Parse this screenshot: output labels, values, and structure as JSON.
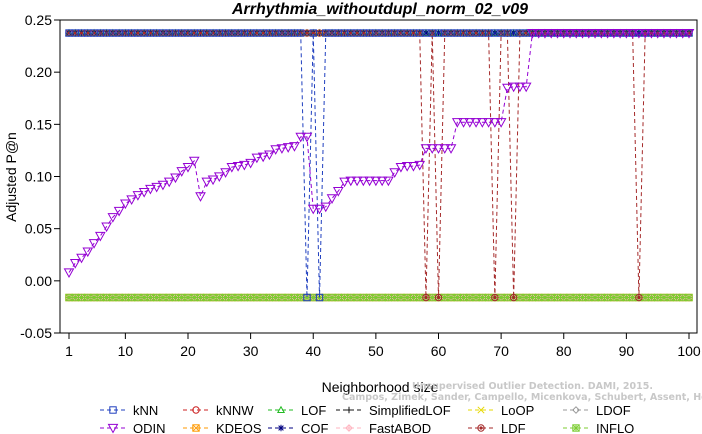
{
  "chart_data": {
    "type": "line",
    "title": "Arrhythmia_withoutdupl_norm_02_v09",
    "xlabel": "Neighborhood size",
    "ylabel": "Adjusted P@n",
    "xlim": [
      1,
      100
    ],
    "ylim": [
      -0.05,
      0.25
    ],
    "xticks": [
      1,
      10,
      20,
      30,
      40,
      50,
      60,
      70,
      80,
      90,
      100
    ],
    "yticks": [
      -0.05,
      0.0,
      0.05,
      0.1,
      0.15,
      0.2,
      0.25
    ],
    "grid": false,
    "legend_position": "bottom",
    "series": [
      {
        "name": "kNN",
        "color": "#1f3fbf",
        "marker": "square",
        "segments": [
          {
            "from": 1,
            "to": 38,
            "value": 0.2375
          },
          {
            "from": 39,
            "to": 39,
            "value": -0.016
          },
          {
            "from": 40,
            "to": 40,
            "value": 0.2375
          },
          {
            "from": 41,
            "to": 41,
            "value": -0.016
          },
          {
            "from": 42,
            "to": 100,
            "value": 0.2375
          }
        ]
      },
      {
        "name": "kNNW",
        "color": "#cc2222",
        "marker": "circle",
        "segments": [
          {
            "from": 1,
            "to": 100,
            "value": -0.016
          }
        ]
      },
      {
        "name": "LOF",
        "color": "#22bb22",
        "marker": "triangle-up",
        "segments": [
          {
            "from": 1,
            "to": 100,
            "value": 0.2375
          }
        ]
      },
      {
        "name": "SimplifiedLOF",
        "color": "#111111",
        "marker": "plus",
        "segments": [
          {
            "from": 1,
            "to": 100,
            "value": -0.016
          }
        ]
      },
      {
        "name": "LoOP",
        "color": "#e6d800",
        "marker": "x",
        "segments": [
          {
            "from": 1,
            "to": 100,
            "value": -0.016
          }
        ]
      },
      {
        "name": "LDOF",
        "color": "#999999",
        "marker": "diamond",
        "segments": [
          {
            "from": 1,
            "to": 100,
            "value": -0.016
          }
        ]
      },
      {
        "name": "ODIN",
        "color": "#9400d3",
        "marker": "triangle-down",
        "x": [
          1,
          2,
          3,
          4,
          5,
          6,
          7,
          8,
          9,
          10,
          11,
          12,
          13,
          14,
          15,
          16,
          17,
          18,
          19,
          20,
          21,
          22,
          23,
          24,
          25,
          26,
          27,
          28,
          29,
          30,
          31,
          32,
          33,
          34,
          35,
          36,
          37,
          38,
          39,
          40,
          41,
          42,
          43,
          44,
          45,
          46,
          47,
          48,
          49,
          50,
          51,
          52,
          53,
          54,
          55,
          56,
          57,
          58,
          59,
          60,
          61,
          62,
          63,
          64,
          65,
          66,
          67,
          68,
          69,
          70,
          71,
          72,
          73,
          74,
          75,
          76,
          77,
          78,
          79,
          80,
          81,
          82,
          83,
          84,
          85,
          86,
          87,
          88,
          89,
          90,
          91,
          92,
          93,
          94,
          95,
          96,
          97,
          98,
          99,
          100
        ],
        "values": [
          0.008,
          0.017,
          0.022,
          0.028,
          0.036,
          0.043,
          0.052,
          0.061,
          0.067,
          0.074,
          0.078,
          0.082,
          0.085,
          0.088,
          0.09,
          0.092,
          0.095,
          0.099,
          0.105,
          0.109,
          0.115,
          0.081,
          0.095,
          0.097,
          0.1,
          0.104,
          0.109,
          0.11,
          0.111,
          0.113,
          0.118,
          0.119,
          0.121,
          0.126,
          0.127,
          0.128,
          0.129,
          0.138,
          0.138,
          0.069,
          0.069,
          0.071,
          0.079,
          0.086,
          0.095,
          0.096,
          0.096,
          0.096,
          0.096,
          0.096,
          0.096,
          0.096,
          0.104,
          0.109,
          0.11,
          0.11,
          0.111,
          0.127,
          0.127,
          0.127,
          0.127,
          0.127,
          0.152,
          0.152,
          0.152,
          0.152,
          0.152,
          0.152,
          0.152,
          0.152,
          0.185,
          0.186,
          0.186,
          0.186,
          0.2375,
          0.2375,
          0.2375,
          0.2375,
          0.2375,
          0.2375,
          0.2375,
          0.2375,
          0.2375,
          0.2375,
          0.2375,
          0.2375,
          0.2375,
          0.2375,
          0.2375,
          0.2375,
          0.2375,
          0.2375,
          0.2375,
          0.2375,
          0.2375,
          0.2375,
          0.2375,
          0.2375,
          0.2375,
          0.2375
        ]
      },
      {
        "name": "KDEOS",
        "color": "#ff9900",
        "marker": "square-x",
        "segments": [
          {
            "from": 1,
            "to": 100,
            "value": -0.016
          }
        ]
      },
      {
        "name": "COF",
        "color": "#000080",
        "marker": "asterisk",
        "segments": [
          {
            "from": 1,
            "to": 100,
            "value": 0.2375
          }
        ]
      },
      {
        "name": "FastABOD",
        "color": "#ffb6c1",
        "marker": "diamond-plus",
        "segments": [
          {
            "from": 1,
            "to": 100,
            "value": -0.016
          }
        ]
      },
      {
        "name": "LDF",
        "color": "#a52a2a",
        "marker": "circle-dot",
        "segments": [
          {
            "from": 1,
            "to": 57,
            "value": 0.2375
          },
          {
            "from": 58,
            "to": 58,
            "value": -0.016
          },
          {
            "from": 59,
            "to": 59,
            "value": 0.2375
          },
          {
            "from": 60,
            "to": 60,
            "value": -0.016
          },
          {
            "from": 61,
            "to": 68,
            "value": 0.2375
          },
          {
            "from": 69,
            "to": 69,
            "value": -0.016
          },
          {
            "from": 70,
            "to": 71,
            "value": 0.2375
          },
          {
            "from": 72,
            "to": 72,
            "value": -0.016
          },
          {
            "from": 73,
            "to": 91,
            "value": 0.2375
          },
          {
            "from": 92,
            "to": 92,
            "value": -0.016
          },
          {
            "from": 93,
            "to": 100,
            "value": 0.2375
          }
        ]
      },
      {
        "name": "INFLO",
        "color": "#7ccd32",
        "marker": "square-star",
        "segments": [
          {
            "from": 1,
            "to": 100,
            "value": -0.016
          }
        ]
      }
    ]
  },
  "watermark": {
    "line1": "Campos, Zimek, Sander, Campello, Micenkova, Schubert, Assent, Houle",
    "line2": "Unsupervised Outlier Detection. DAMI, 2015."
  }
}
